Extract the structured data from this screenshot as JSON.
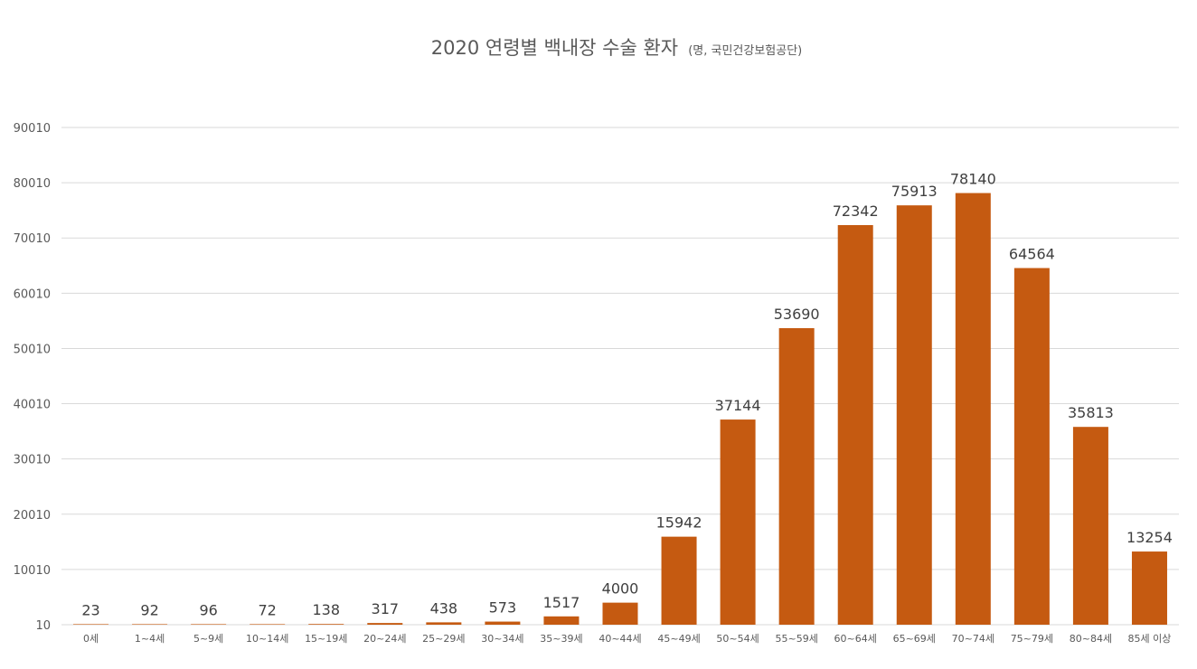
{
  "chart_data": {
    "type": "bar",
    "title": "2020 연령별 백내장 수술 환자",
    "subtitle": "(명, 국민건강보험공단)",
    "categories": [
      "0세",
      "1~4세",
      "5~9세",
      "10~14세",
      "15~19세",
      "20~24세",
      "25~29세",
      "30~34세",
      "35~39세",
      "40~44세",
      "45~49세",
      "50~54세",
      "55~59세",
      "60~64세",
      "65~69세",
      "70~74세",
      "75~79세",
      "80~84세",
      "85세 이상"
    ],
    "values": [
      23,
      92,
      96,
      72,
      138,
      317,
      438,
      573,
      1517,
      4000,
      15942,
      37144,
      53690,
      72342,
      75913,
      78140,
      64564,
      35813,
      13254
    ],
    "data_labels": [
      "23",
      "92",
      "96",
      "72",
      "138",
      "317",
      "438",
      "573",
      "1517",
      "4000",
      "15942",
      "37144",
      "53690",
      "72342",
      "75913",
      "78140",
      "64564",
      "35813",
      "13254"
    ],
    "yticks": [
      10,
      10010,
      20010,
      30010,
      40010,
      50010,
      60010,
      70010,
      80010,
      90010
    ],
    "ytick_labels": [
      "10",
      "10010",
      "20010",
      "30010",
      "40010",
      "50010",
      "60010",
      "70010",
      "80010",
      "90010"
    ],
    "ylim": [
      10,
      90010
    ],
    "xlabel": "",
    "ylabel": "",
    "grid": true,
    "legend": "none",
    "bar_color": "#c55a11"
  }
}
